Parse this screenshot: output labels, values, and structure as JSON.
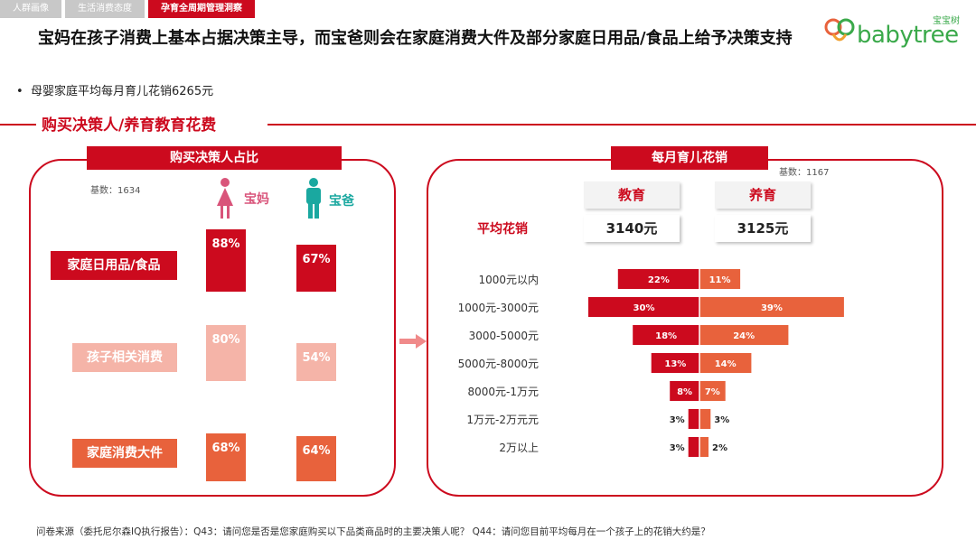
{
  "tabs": [
    {
      "label": "人群画像",
      "active": false
    },
    {
      "label": "生活消费态度",
      "active": false
    },
    {
      "label": "孕育全周期管理洞察",
      "active": true
    }
  ],
  "logo": {
    "text": "babytree",
    "sub": "宝宝树"
  },
  "headline": "宝妈在孩子消费上基本占据决策主导，而宝爸则会在家庭消费大件及部分家庭日用品/食品上给予决策支持",
  "bullet": "母婴家庭平均每月育儿花销6265元",
  "section_title": "购买决策人/养育教育花费",
  "colors": {
    "red": "#cc0a1e",
    "orange": "#e8623c",
    "pink": "#f5b4a8",
    "pink_text": "#d9547a",
    "teal": "#1aa8a0"
  },
  "left_panel": {
    "header": "购买决策人占比",
    "base": "基数：1634",
    "mom_label": "宝妈",
    "dad_label": "宝爸",
    "mom_icon": "female-icon",
    "dad_icon": "male-icon"
  },
  "right_panel": {
    "header": "每月育儿花销",
    "base": "基数：1167",
    "col_education": "教育",
    "col_upbringing": "养育",
    "avg_label": "平均花销",
    "avg_education": "3140元",
    "avg_upbringing": "3125元"
  },
  "chart_data": [
    {
      "type": "bar",
      "title": "购买决策人占比",
      "categories": [
        "家庭日用品/食品",
        "孩子相关消费",
        "家庭消费大件"
      ],
      "series": [
        {
          "name": "宝妈",
          "values": [
            88,
            80,
            68
          ]
        },
        {
          "name": "宝爸",
          "values": [
            67,
            54,
            64
          ]
        }
      ],
      "category_colors": [
        "#cc0a1e",
        "#f5b4a8",
        "#e8623c"
      ],
      "unit": "%"
    },
    {
      "type": "bar",
      "title": "每月育儿花销",
      "orientation": "horizontal-diverging",
      "categories": [
        "1000元以内",
        "1000元-3000元",
        "3000-5000元",
        "5000元-8000元",
        "8000元-1万元",
        "1万元-2万元元",
        "2万以上"
      ],
      "series": [
        {
          "name": "教育",
          "values": [
            22,
            30,
            18,
            13,
            8,
            3,
            3
          ],
          "color": "#cc0a1e"
        },
        {
          "name": "养育",
          "values": [
            11,
            39,
            24,
            14,
            7,
            3,
            2
          ],
          "color": "#e8623c"
        }
      ],
      "unit": "%"
    }
  ],
  "footer": "问卷来源（委托尼尔森IQ执行报告）：Q43：请问您是否是您家庭购买以下品类商品时的主要决策人呢？ Q44：请问您目前平均每月在一个孩子上的花销大约是？"
}
